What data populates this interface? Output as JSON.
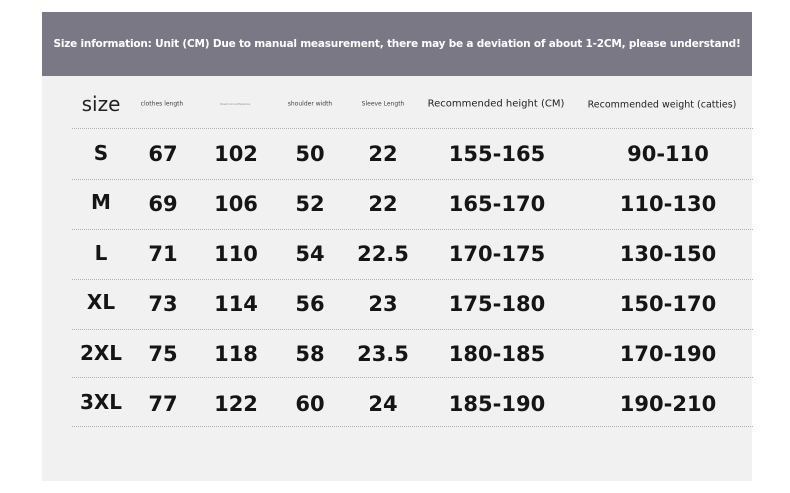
{
  "banner": {
    "text": "Size information: Unit (CM) Due to manual measurement, there may be a deviation of about 1-2CM, please understand!"
  },
  "headers": {
    "size": "size",
    "clothes_length": "clothes length",
    "chest_circumference": "chest circumference",
    "shoulder_width": "shoulder width",
    "sleeve_length": "Sleeve Length",
    "recommended_height": "Recommended height (CM)",
    "recommended_weight": "Recommended weight (catties)"
  },
  "rows": [
    {
      "size": "S",
      "length": "67",
      "chest": "102",
      "shoulder": "50",
      "sleeve": "22",
      "height": "155-165",
      "weight": "90-110"
    },
    {
      "size": "M",
      "length": "69",
      "chest": "106",
      "shoulder": "52",
      "sleeve": "22",
      "height": "165-170",
      "weight": "110-130"
    },
    {
      "size": "L",
      "length": "71",
      "chest": "110",
      "shoulder": "54",
      "sleeve": "22.5",
      "height": "170-175",
      "weight": "130-150"
    },
    {
      "size": "XL",
      "length": "73",
      "chest": "114",
      "shoulder": "56",
      "sleeve": "23",
      "height": "175-180",
      "weight": "150-170"
    },
    {
      "size": "2XL",
      "length": "75",
      "chest": "118",
      "shoulder": "58",
      "sleeve": "23.5",
      "height": "180-185",
      "weight": "170-190"
    },
    {
      "size": "3XL",
      "length": "77",
      "chest": "122",
      "shoulder": "60",
      "sleeve": "24",
      "height": "185-190",
      "weight": "190-210"
    }
  ]
}
